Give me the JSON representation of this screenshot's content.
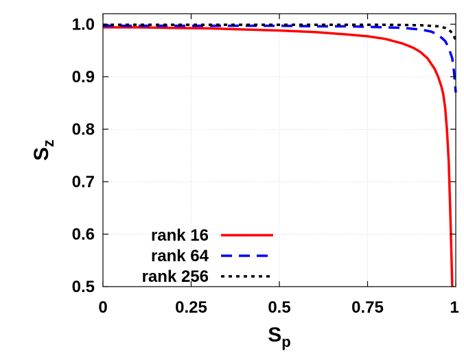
{
  "chart_data": {
    "type": "line",
    "title": "",
    "xlabel": {
      "main": "S",
      "sub": "p"
    },
    "ylabel": {
      "main": "S",
      "sub": "z"
    },
    "xlim": [
      0,
      1
    ],
    "ylim": [
      0.5,
      1.02
    ],
    "xticks": [
      0,
      0.25,
      0.5,
      0.75,
      1
    ],
    "xtick_labels": [
      "0",
      "0.25",
      "0.5",
      "0.75",
      "1"
    ],
    "yticks": [
      0.5,
      0.6,
      0.7,
      0.8,
      0.9,
      1.0
    ],
    "ytick_labels": [
      "0.5",
      "0.6",
      "0.7",
      "0.8",
      "0.9",
      "1.0"
    ],
    "grid": true,
    "legend_position": "bottom-left",
    "series": [
      {
        "name": "rank 16",
        "color": "#ff0000",
        "dash": "solid",
        "x": [
          0,
          0.1,
          0.2,
          0.3,
          0.4,
          0.5,
          0.6,
          0.7,
          0.75,
          0.8,
          0.85,
          0.88,
          0.9,
          0.92,
          0.94,
          0.95,
          0.96,
          0.965,
          0.97,
          0.975,
          0.98,
          0.985,
          0.99
        ],
        "y": [
          0.994,
          0.994,
          0.993,
          0.992,
          0.99,
          0.988,
          0.985,
          0.98,
          0.977,
          0.972,
          0.963,
          0.955,
          0.947,
          0.935,
          0.915,
          0.9,
          0.88,
          0.865,
          0.84,
          0.8,
          0.74,
          0.63,
          0.5
        ]
      },
      {
        "name": "rank 64",
        "color": "#0000ff",
        "dash": "dashed",
        "x": [
          0,
          0.2,
          0.4,
          0.5,
          0.6,
          0.7,
          0.75,
          0.8,
          0.85,
          0.9,
          0.93,
          0.95,
          0.97,
          0.98,
          0.99,
          0.995,
          1.0
        ],
        "y": [
          0.997,
          0.997,
          0.997,
          0.997,
          0.996,
          0.996,
          0.995,
          0.994,
          0.993,
          0.99,
          0.986,
          0.98,
          0.968,
          0.955,
          0.935,
          0.91,
          0.87
        ]
      },
      {
        "name": "rank 256",
        "color": "#000000",
        "dash": "dotted",
        "x": [
          0,
          0.2,
          0.4,
          0.6,
          0.8,
          0.9,
          0.95,
          0.97,
          0.98,
          0.99,
          1.0
        ],
        "y": [
          0.999,
          0.999,
          0.999,
          0.999,
          0.999,
          0.998,
          0.996,
          0.993,
          0.99,
          0.983,
          0.97
        ]
      }
    ]
  }
}
